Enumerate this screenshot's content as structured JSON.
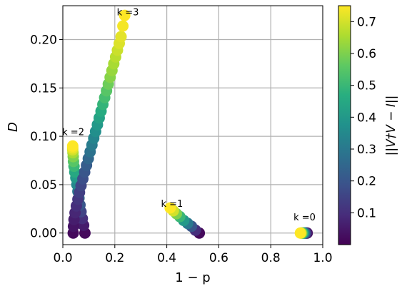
{
  "chart_data": {
    "type": "scatter",
    "title": "",
    "xlabel": "1 − p",
    "ylabel": "D",
    "xlim": [
      0.0,
      1.0
    ],
    "ylim": [
      -0.012,
      0.235
    ],
    "xticks": [
      "0.0",
      "0.2",
      "0.4",
      "0.6",
      "0.8",
      "1.0"
    ],
    "yticks": [
      "0.00",
      "0.05",
      "0.10",
      "0.15",
      "0.20"
    ],
    "grid": true,
    "colormap": "viridis",
    "colorbar": {
      "label": "||V†V − I||",
      "range": [
        0.0,
        0.75
      ],
      "ticks": [
        "0.1",
        "0.2",
        "0.3",
        "0.4",
        "0.5",
        "0.6",
        "0.7"
      ]
    },
    "annotations": [
      {
        "text": "k =0",
        "x": 0.93,
        "y": 0.013
      },
      {
        "text": "k =1",
        "x": 0.42,
        "y": 0.027
      },
      {
        "text": "k =2",
        "x": 0.04,
        "y": 0.101
      },
      {
        "text": "k =3",
        "x": 0.25,
        "y": 0.225
      }
    ],
    "series": [
      {
        "x": [
          0.94,
          0.938,
          0.935,
          0.932,
          0.929,
          0.926,
          0.923,
          0.92,
          0.917,
          0.914
        ],
        "y": [
          0.0,
          0.0,
          0.0,
          0.0,
          0.0,
          0.0,
          0.0,
          0.0,
          0.0,
          0.0
        ],
        "c": [
          0.02,
          0.05,
          0.1,
          0.18,
          0.26,
          0.35,
          0.45,
          0.55,
          0.65,
          0.75
        ]
      },
      {
        "x": [
          0.525,
          0.51,
          0.495,
          0.48,
          0.465,
          0.45,
          0.437,
          0.425,
          0.413
        ],
        "y": [
          0.0,
          0.003,
          0.007,
          0.01,
          0.013,
          0.017,
          0.02,
          0.023,
          0.026
        ],
        "c": [
          0.02,
          0.1,
          0.2,
          0.3,
          0.4,
          0.5,
          0.6,
          0.7,
          0.75
        ]
      },
      {
        "x": [
          0.085,
          0.08,
          0.075,
          0.07,
          0.066,
          0.062,
          0.058,
          0.054,
          0.05,
          0.046,
          0.043,
          0.041,
          0.04,
          0.039,
          0.038,
          0.038,
          0.038
        ],
        "y": [
          0.0,
          0.008,
          0.015,
          0.022,
          0.029,
          0.036,
          0.043,
          0.05,
          0.057,
          0.063,
          0.069,
          0.074,
          0.079,
          0.083,
          0.086,
          0.088,
          0.09
        ],
        "c": [
          0.02,
          0.06,
          0.1,
          0.15,
          0.2,
          0.25,
          0.3,
          0.35,
          0.4,
          0.45,
          0.5,
          0.55,
          0.6,
          0.65,
          0.7,
          0.73,
          0.75
        ]
      },
      {
        "x": [
          0.04,
          0.041,
          0.043,
          0.047,
          0.052,
          0.058,
          0.064,
          0.07,
          0.077,
          0.084,
          0.091,
          0.098,
          0.105,
          0.112,
          0.119,
          0.126,
          0.133,
          0.14,
          0.147,
          0.154,
          0.161,
          0.168,
          0.175,
          0.182,
          0.189,
          0.196,
          0.203,
          0.21,
          0.217,
          0.224,
          0.231,
          0.238
        ],
        "y": [
          0.0,
          0.007,
          0.014,
          0.021,
          0.028,
          0.035,
          0.042,
          0.049,
          0.056,
          0.063,
          0.07,
          0.077,
          0.084,
          0.091,
          0.098,
          0.105,
          0.112,
          0.119,
          0.126,
          0.133,
          0.14,
          0.147,
          0.154,
          0.161,
          0.168,
          0.175,
          0.182,
          0.189,
          0.196,
          0.203,
          0.214,
          0.225
        ],
        "c": [
          0.02,
          0.04,
          0.06,
          0.08,
          0.1,
          0.12,
          0.14,
          0.16,
          0.18,
          0.2,
          0.22,
          0.25,
          0.28,
          0.31,
          0.34,
          0.37,
          0.4,
          0.43,
          0.46,
          0.49,
          0.52,
          0.55,
          0.58,
          0.61,
          0.63,
          0.65,
          0.67,
          0.69,
          0.71,
          0.72,
          0.74,
          0.75
        ]
      }
    ]
  }
}
